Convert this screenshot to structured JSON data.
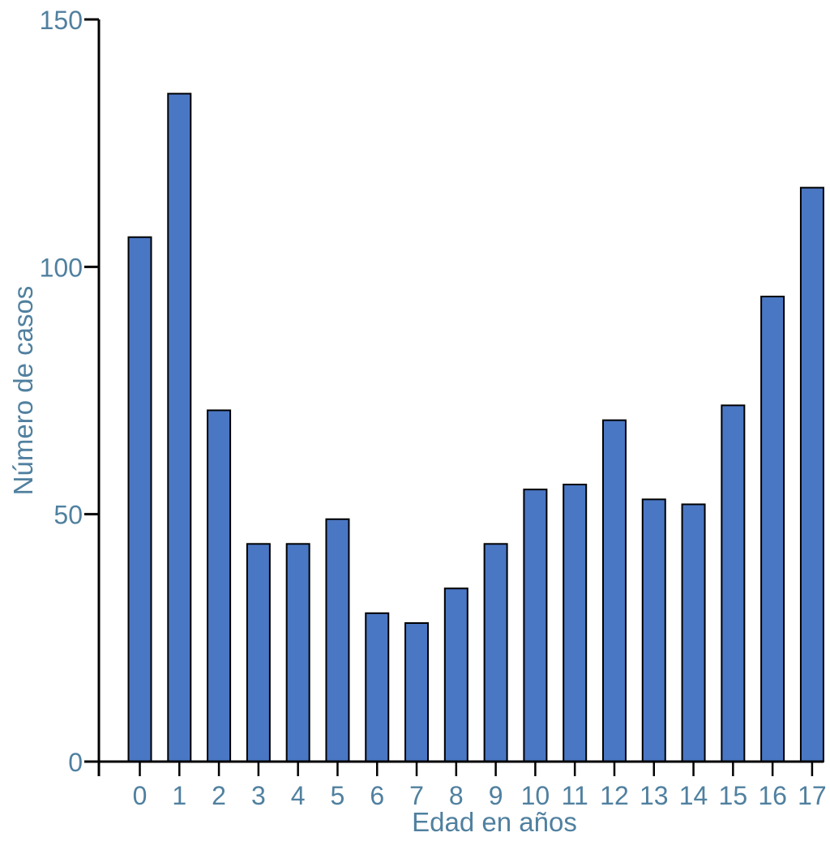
{
  "figure": {
    "background": "#ffffff"
  },
  "chart_data": {
    "type": "bar",
    "title": "",
    "xlabel": "Edad en años",
    "ylabel": "Número de casos",
    "categories": [
      "0",
      "1",
      "2",
      "3",
      "4",
      "5",
      "6",
      "7",
      "8",
      "9",
      "10",
      "11",
      "12",
      "13",
      "14",
      "15",
      "16",
      "17"
    ],
    "values": [
      106,
      135,
      71,
      44,
      44,
      49,
      30,
      28,
      35,
      44,
      55,
      56,
      69,
      53,
      52,
      72,
      94,
      116
    ],
    "ylim": [
      0,
      150
    ],
    "yticks": [
      0,
      50,
      100,
      150
    ],
    "grid": false,
    "legend": "none",
    "bar_fill": "#4a77c4",
    "bar_stroke": "#000000",
    "axis_color": "#000000",
    "label_color": "#50809f"
  }
}
